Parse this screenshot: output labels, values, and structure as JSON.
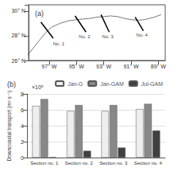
{
  "chart_data": [
    {
      "type": "line",
      "title": "(a)",
      "xlim": [
        98.5,
        88.5
      ],
      "xticks": [
        {
          "value": 97,
          "label": "97° W"
        },
        {
          "value": 95,
          "label": "95° W"
        },
        {
          "value": 93,
          "label": "93° W"
        },
        {
          "value": 91,
          "label": "91° W"
        },
        {
          "value": 89,
          "label": "89° W"
        }
      ],
      "ylim": [
        26.0,
        30.5
      ],
      "yticks": [
        {
          "value": 30,
          "label": "30° N"
        },
        {
          "value": 28,
          "label": "28° N"
        },
        {
          "value": 26,
          "label": "26° N"
        }
      ],
      "series": [
        {
          "color": "#555555",
          "x": [
            98.8,
            97.8,
            97.3,
            96.8,
            96.2,
            95.6,
            95.0,
            94.5,
            94.0,
            93.5,
            93.0,
            92.5,
            92.0,
            91.5,
            91.0,
            90.5,
            90.0,
            89.3,
            88.8
          ],
          "values": [
            26.1,
            27.5,
            28.2,
            28.7,
            29.0,
            29.2,
            29.3,
            29.35,
            29.4,
            29.5,
            29.55,
            29.6,
            29.55,
            29.4,
            29.3,
            29.25,
            29.3,
            29.5,
            29.7
          ]
        },
        {
          "color": "black",
          "x": [
            97.6,
            96.7
          ],
          "values": [
            29.1,
            27.8
          ]
        },
        {
          "color": "black",
          "x": [
            95.1,
            94.3
          ],
          "values": [
            29.6,
            28.3
          ]
        },
        {
          "color": "black",
          "x": [
            93.2,
            92.6
          ],
          "values": [
            29.7,
            28.3
          ]
        },
        {
          "color": "black",
          "x": [
            90.7,
            90.1
          ],
          "values": [
            29.5,
            28.4
          ]
        }
      ],
      "annotations": [
        {
          "text": "No. 1",
          "x": 96.3,
          "y": 27.6
        },
        {
          "text": "No. 2",
          "x": 94.4,
          "y": 28.2
        },
        {
          "text": "No. 3",
          "x": 92.7,
          "y": 28.2
        },
        {
          "text": "No. 4",
          "x": 90.2,
          "y": 28.3
        }
      ]
    },
    {
      "type": "bar",
      "title": "(b)",
      "categories": [
        "Section no. 1",
        "Section no. 2",
        "Section no. 3",
        "Section no. 4"
      ],
      "series": [
        {
          "name": "Jan-G",
          "color": "#eeeeee",
          "values": [
            6.5,
            5.85,
            5.85,
            6.1
          ]
        },
        {
          "name": "Jan-GAM",
          "color": "#888888",
          "values": [
            7.35,
            6.6,
            6.6,
            6.75
          ]
        },
        {
          "name": "Jul-GAM",
          "color": "#404040",
          "values": [
            0.05,
            0.85,
            1.25,
            3.4
          ]
        }
      ],
      "ylim": [
        0,
        8
      ],
      "yticks": [
        0,
        2,
        4,
        6,
        8
      ],
      "ylabel": "Downcoastal transport (m³ s⁻¹)",
      "annotations": [
        {
          "text": "×10⁵"
        }
      ],
      "grid": true,
      "legend": "upper right"
    }
  ]
}
